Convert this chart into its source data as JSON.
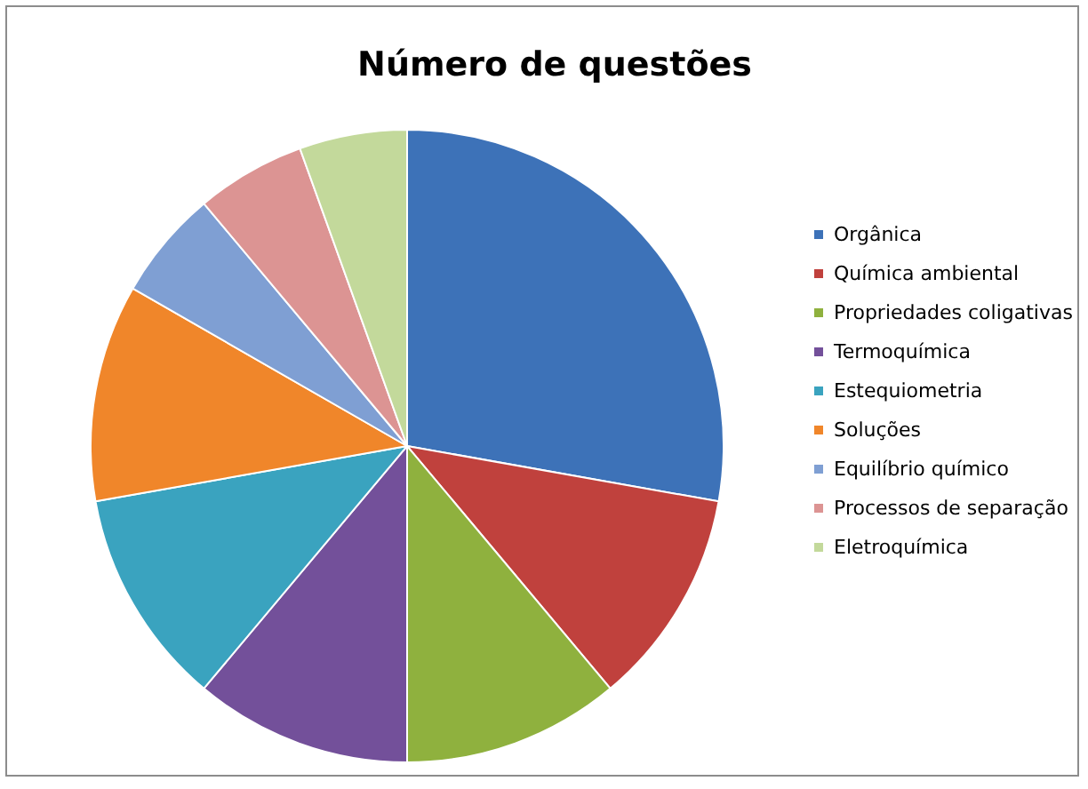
{
  "chart_data": {
    "type": "pie",
    "title": "Número de questões",
    "categories": [
      "Orgânica",
      "Química ambiental",
      "Propriedades coligativas",
      "Termoquímica",
      "Estequiometria",
      "Soluções",
      "Equilíbrio químico",
      "Processos de separação",
      "Eletroquímica"
    ],
    "values": [
      27.8,
      11.1,
      11.1,
      11.1,
      11.1,
      11.1,
      5.6,
      5.6,
      5.5
    ],
    "colors": [
      "#3d72b8",
      "#c0413d",
      "#8fb13e",
      "#73509a",
      "#3aa3bf",
      "#f0862a",
      "#7f9fd3",
      "#dc9493",
      "#c3d99b"
    ],
    "legend": "right"
  }
}
